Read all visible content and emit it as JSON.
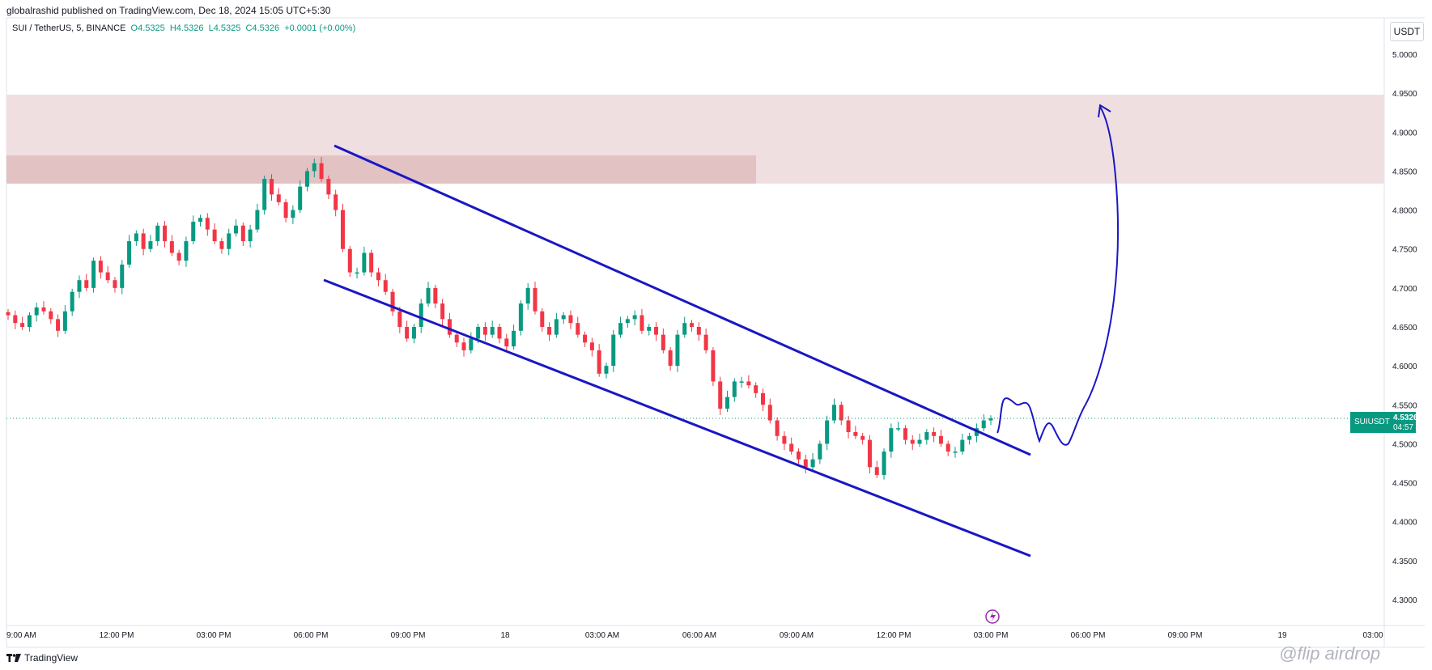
{
  "header": {
    "published": "globalrashid published on TradingView.com, Dec 18, 2024 15:05 UTC+5:30"
  },
  "symbol_bar": {
    "title": "SUI / TetherUS, 5, BINANCE",
    "open": "O4.5325",
    "high": "H4.5326",
    "low": "L4.5325",
    "close": "C4.5326",
    "change": "+0.0001 (+0.00%)"
  },
  "currency_button": "USDT",
  "price_tag": {
    "symbol": "SUIUSDT",
    "last": "4.5326",
    "countdown": "04:57"
  },
  "branding": "TradingView",
  "watermark": "@flip airdrop",
  "colors": {
    "up": "#089981",
    "down": "#f23645",
    "drawing": "#1a17c4",
    "zone_light": "#f0dfe0",
    "zone_dark": "#e2c2c3"
  },
  "chart_data": {
    "type": "candlestick",
    "series": [
      {
        "name": "SUIUSDT",
        "interval": "5",
        "values": [
          4.665,
          4.655,
          4.65,
          4.665,
          4.675,
          4.67,
          4.66,
          4.645,
          4.67,
          4.695,
          4.71,
          4.7,
          4.735,
          4.72,
          4.71,
          4.7,
          4.73,
          4.76,
          4.77,
          4.75,
          4.76,
          4.78,
          4.76,
          4.745,
          4.735,
          4.76,
          4.785,
          4.79,
          4.775,
          4.76,
          4.75,
          4.77,
          4.78,
          4.76,
          4.775,
          4.8,
          4.84,
          4.82,
          4.81,
          4.79,
          4.8,
          4.83,
          4.85,
          4.86,
          4.84,
          4.82,
          4.8,
          4.75,
          4.72,
          4.72,
          4.745,
          4.72,
          4.71,
          4.695,
          4.67,
          4.65,
          4.635,
          4.65,
          4.68,
          4.7,
          4.68,
          4.66,
          4.64,
          4.63,
          4.62,
          4.635,
          4.65,
          4.64,
          4.65,
          4.635,
          4.625,
          4.645,
          4.68,
          4.7,
          4.67,
          4.65,
          4.64,
          4.66,
          4.665,
          4.655,
          4.64,
          4.63,
          4.62,
          4.59,
          4.6,
          4.64,
          4.655,
          4.66,
          4.665,
          4.645,
          4.65,
          4.64,
          4.62,
          4.6,
          4.64,
          4.655,
          4.65,
          4.64,
          4.62,
          4.58,
          4.545,
          4.56,
          4.58,
          4.58,
          4.575,
          4.565,
          4.55,
          4.53,
          4.51,
          4.5,
          4.49,
          4.48,
          4.47,
          4.48,
          4.5,
          4.53,
          4.55,
          4.53,
          4.515,
          4.51,
          4.505,
          4.47,
          4.46,
          4.49,
          4.52,
          4.52,
          4.505,
          4.5,
          4.505,
          4.515,
          4.51,
          4.5,
          4.49,
          4.49,
          4.505,
          4.51,
          4.52,
          4.53,
          4.5326
        ],
        "open": "4.5325",
        "high": "4.5326",
        "low": "4.5325",
        "close": "4.5326"
      }
    ],
    "xlabel": "",
    "ylabel": "",
    "x_ticks": [
      "9:00 AM",
      "12:00 PM",
      "03:00 PM",
      "06:00 PM",
      "09:00 PM",
      "18",
      "03:00 AM",
      "06:00 AM",
      "09:00 AM",
      "12:00 PM",
      "03:00 PM",
      "06:00 PM",
      "09:00 PM",
      "19",
      "03:00"
    ],
    "y_ticks": [
      "5.0000",
      "4.9500",
      "4.9000",
      "4.8500",
      "4.8000",
      "4.7500",
      "4.7000",
      "4.6500",
      "4.6000",
      "4.5500",
      "4.5000",
      "4.4500",
      "4.4000",
      "4.3500",
      "4.3000"
    ],
    "ylim": [
      4.275,
      5.03
    ],
    "current_price": 4.5326,
    "annotations": {
      "channel_upper": {
        "from": [
          "07:00 PM",
          4.88
        ],
        "to": [
          "04:10 PM",
          4.485
        ]
      },
      "channel_lower": {
        "from": [
          "07:00 PM",
          4.71
        ],
        "to": [
          "04:10 PM",
          4.355
        ]
      },
      "zone_outer": {
        "price_range": [
          4.834,
          4.948
        ]
      },
      "zone_inner": {
        "price_range": [
          4.834,
          4.87
        ]
      },
      "projection": "hand-drawn arrow pointing up toward 4.93"
    }
  }
}
